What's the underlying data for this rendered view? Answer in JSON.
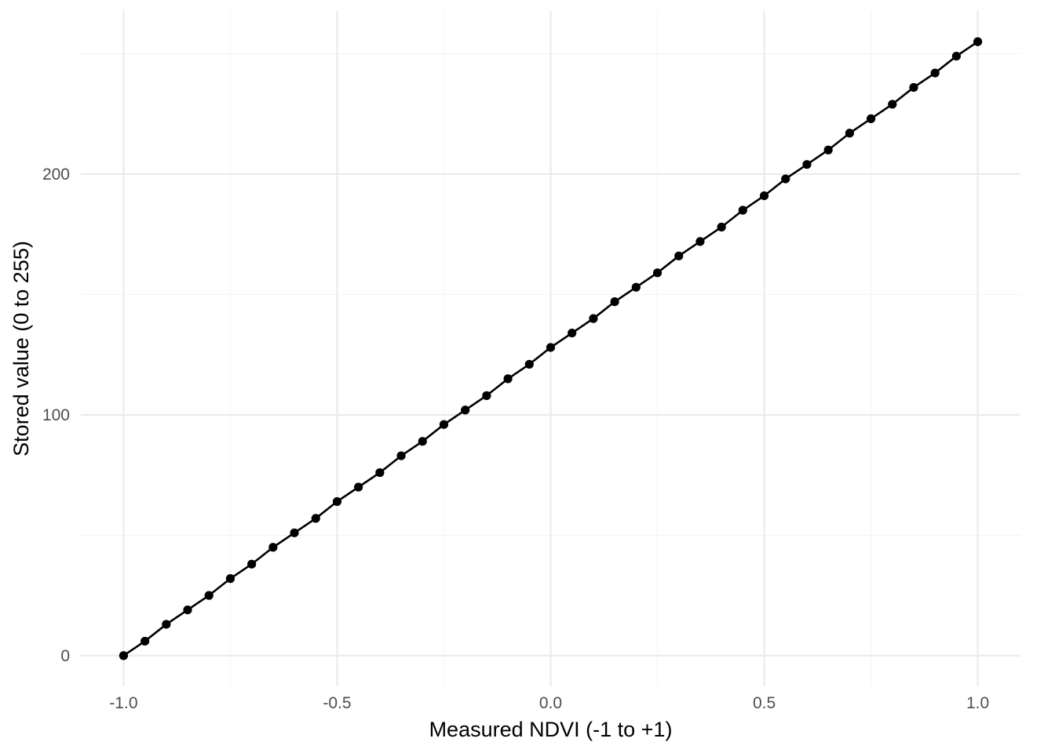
{
  "chart_data": {
    "type": "line",
    "title": "",
    "xlabel": "Measured NDVI (-1 to +1)",
    "ylabel": "Stored value (0 to 255)",
    "xlim": [
      -1.1,
      1.1
    ],
    "ylim": [
      -12.75,
      267.75
    ],
    "x_ticks": [
      -1.0,
      -0.5,
      0.0,
      0.5,
      1.0
    ],
    "x_tick_labels": [
      "-1.0",
      "-0.5",
      "0.0",
      "0.5",
      "1.0"
    ],
    "x_minor_ticks": [
      -0.75,
      -0.25,
      0.25,
      0.75
    ],
    "y_ticks": [
      0,
      100,
      200
    ],
    "y_tick_labels": [
      "0",
      "100",
      "200"
    ],
    "y_minor_ticks": [
      50,
      150,
      250
    ],
    "grid": true,
    "legend": "none",
    "series": [
      {
        "color": "#000000",
        "x": [
          -1.0,
          -0.95,
          -0.9,
          -0.85,
          -0.8,
          -0.75,
          -0.7,
          -0.65,
          -0.6,
          -0.55,
          -0.5,
          -0.45,
          -0.4,
          -0.35,
          -0.3,
          -0.25,
          -0.2,
          -0.15,
          -0.1,
          -0.05,
          0.0,
          0.05,
          0.1,
          0.15,
          0.2,
          0.25,
          0.3,
          0.35,
          0.4,
          0.45,
          0.5,
          0.55,
          0.6,
          0.65,
          0.7,
          0.75,
          0.8,
          0.85,
          0.9,
          0.95,
          1.0
        ],
        "values": [
          0,
          6,
          13,
          19,
          25,
          32,
          38,
          45,
          51,
          57,
          64,
          70,
          76,
          83,
          89,
          96,
          102,
          108,
          115,
          121,
          128,
          134,
          140,
          147,
          153,
          159,
          166,
          172,
          178,
          185,
          191,
          198,
          204,
          210,
          217,
          223,
          229,
          236,
          242,
          249,
          255
        ]
      }
    ]
  }
}
